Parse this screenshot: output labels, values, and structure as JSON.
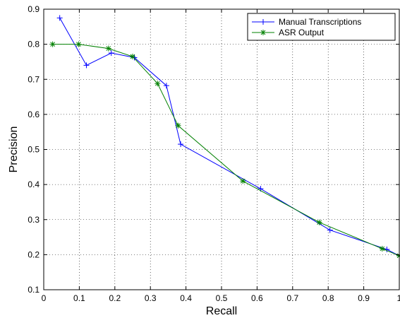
{
  "chart_data": {
    "type": "line",
    "xlabel": "Recall",
    "ylabel": "Precision",
    "xlim": [
      0,
      1
    ],
    "ylim": [
      0.1,
      0.9
    ],
    "xticks": [
      0,
      0.1,
      0.2,
      0.3,
      0.4,
      0.5,
      0.6,
      0.7,
      0.8,
      0.9,
      1
    ],
    "xtick_labels": [
      "0",
      "0.1",
      "0.2",
      "0.3",
      "0.4",
      "0.5",
      "0.6",
      "0.7",
      "0.8",
      "0.9",
      "1"
    ],
    "yticks": [
      0.1,
      0.2,
      0.3,
      0.4,
      0.5,
      0.6,
      0.7,
      0.8,
      0.9
    ],
    "ytick_labels": [
      "0.1",
      "0.2",
      "0.3",
      "0.4",
      "0.5",
      "0.6",
      "0.7",
      "0.8",
      "0.9"
    ],
    "grid": true,
    "legend_position": "top-right",
    "series": [
      {
        "name": "Manual Transcriptions",
        "color": "#0000ff",
        "marker": "plus",
        "x": [
          0.045,
          0.12,
          0.19,
          0.255,
          0.345,
          0.385,
          0.61,
          0.805,
          0.965,
          1.0
        ],
        "y": [
          0.875,
          0.74,
          0.775,
          0.762,
          0.682,
          0.515,
          0.388,
          0.27,
          0.215,
          0.197
        ]
      },
      {
        "name": "ASR Output",
        "color": "#008000",
        "marker": "star",
        "x": [
          0.025,
          0.098,
          0.182,
          0.25,
          0.32,
          0.378,
          0.56,
          0.775,
          0.952,
          1.0
        ],
        "y": [
          0.8,
          0.8,
          0.788,
          0.765,
          0.688,
          0.568,
          0.41,
          0.292,
          0.217,
          0.197
        ]
      }
    ]
  }
}
